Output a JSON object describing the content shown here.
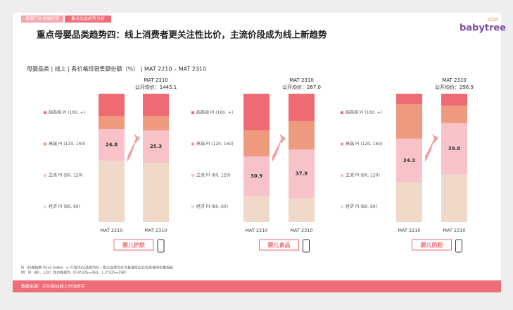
{
  "header": {
    "tabs": [
      "母婴行业发展趋势",
      "重点品类趋势分析"
    ],
    "title": "重点母婴品类趋势四：线上消费者更关注性比价，主流价段成为线上新趋势",
    "subtitle": "母婴品类 | 线上 | 各价格段销售额份额（%） | MAT 2210 – MAT 2310",
    "logo": "babytree",
    "logo_cn": "宝宝树"
  },
  "chart_data": [
    {
      "type": "stacked-bar",
      "category_label": "婴儿护肤",
      "annotation": [
        "MAT 2310",
        "公开均价：1445.1"
      ],
      "categories": [
        "MAT 2210",
        "MAT 2310"
      ],
      "series": [
        {
          "name": "超高端 PI (160, +)",
          "color": "#ee6b74",
          "values": [
            17.6,
            17.6
          ]
        },
        {
          "name": "高端 PI (120, 160)",
          "color": "#ee9a7e",
          "values": [
            9.9,
            11
          ]
        },
        {
          "name": "主流 PI (80, 120)",
          "color": "#f7c3c8",
          "values": [
            24.8,
            25.3
          ],
          "labels": true
        },
        {
          "name": "经济 PI (80, 60)",
          "color": "#f1d9c9",
          "values": [
            47.7,
            46.1
          ]
        }
      ]
    },
    {
      "type": "stacked-bar",
      "category_label": "婴儿食品",
      "annotation": [
        "MAT 2310",
        "公开均价：267.0"
      ],
      "categories": [
        "MAT 2210",
        "MAT 2310"
      ],
      "series": [
        {
          "name": "超高端 PI (160, +)",
          "color": "#ee6b74",
          "values": [
            28.6,
            21.4
          ]
        },
        {
          "name": "高端 PI (120, 160)",
          "color": "#ee9a7e",
          "values": [
            20.3,
            22
          ]
        },
        {
          "name": "主流 PI (80, 120)",
          "color": "#f7c3c8",
          "values": [
            30.9,
            37.9
          ],
          "labels": true
        },
        {
          "name": "经济 PI (80, 60)",
          "color": "#f1d9c9",
          "values": [
            20.2,
            18.7
          ]
        }
      ]
    },
    {
      "type": "stacked-bar",
      "category_label": "婴儿奶粉",
      "annotation": [
        "MAT 2310",
        "公开均价：296.9"
      ],
      "categories": [
        "MAT 2210",
        "MAT 2310"
      ],
      "series": [
        {
          "name": "超高端 PI (160, +)",
          "color": "#ee6b74",
          "values": [
            8.2,
            9.3
          ]
        },
        {
          "name": "高端 PI (120, 160)",
          "color": "#ee9a7e",
          "values": [
            26.9,
            13.7
          ]
        },
        {
          "name": "主流 PI (80, 120)",
          "color": "#f7c3c8",
          "values": [
            34.3,
            39.8
          ],
          "labels": true
        },
        {
          "name": "经济 PI (80, 60)",
          "color": "#f1d9c9",
          "values": [
            30.6,
            37.2
          ]
        }
      ]
    }
  ],
  "notes": [
    "PI（价格指数 Price Index）= 产品均价/品类均价，是以品类均价为基准反应价位高低的价格指标",
    "例：PI（80，120）在价格段为（0.8*325=260，1.2*325=390）"
  ],
  "footer": "数据来源：尼尔森IQ线上市场研究"
}
